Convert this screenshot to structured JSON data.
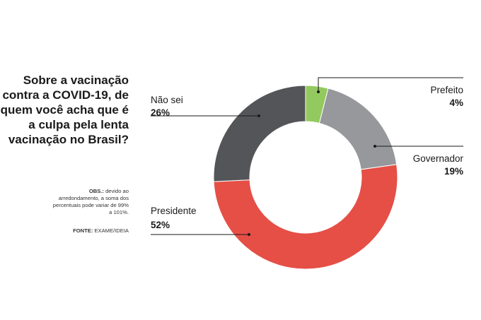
{
  "chart_data": {
    "type": "pie",
    "title": "Sobre a vacinação contra a COVID-19, de quem você acha que é a culpa pela lenta vacinação no Brasil?",
    "note_label": "OBS.:",
    "note_text": " devido ao arredondamento, a soma dos percentuais pode variar de 99% a 101%.",
    "source_label": "FONTE:",
    "source_text": " EXAME/IDEIA",
    "categories": [
      "Prefeito",
      "Governador",
      "Presidente",
      "Não sei"
    ],
    "values": [
      4,
      19,
      52,
      26
    ],
    "value_labels": [
      "4%",
      "19%",
      "52%",
      "26%"
    ],
    "colors": [
      "#93c95f",
      "#97989b",
      "#e54f46",
      "#545558"
    ],
    "donut": true,
    "start": "top, clockwise"
  }
}
